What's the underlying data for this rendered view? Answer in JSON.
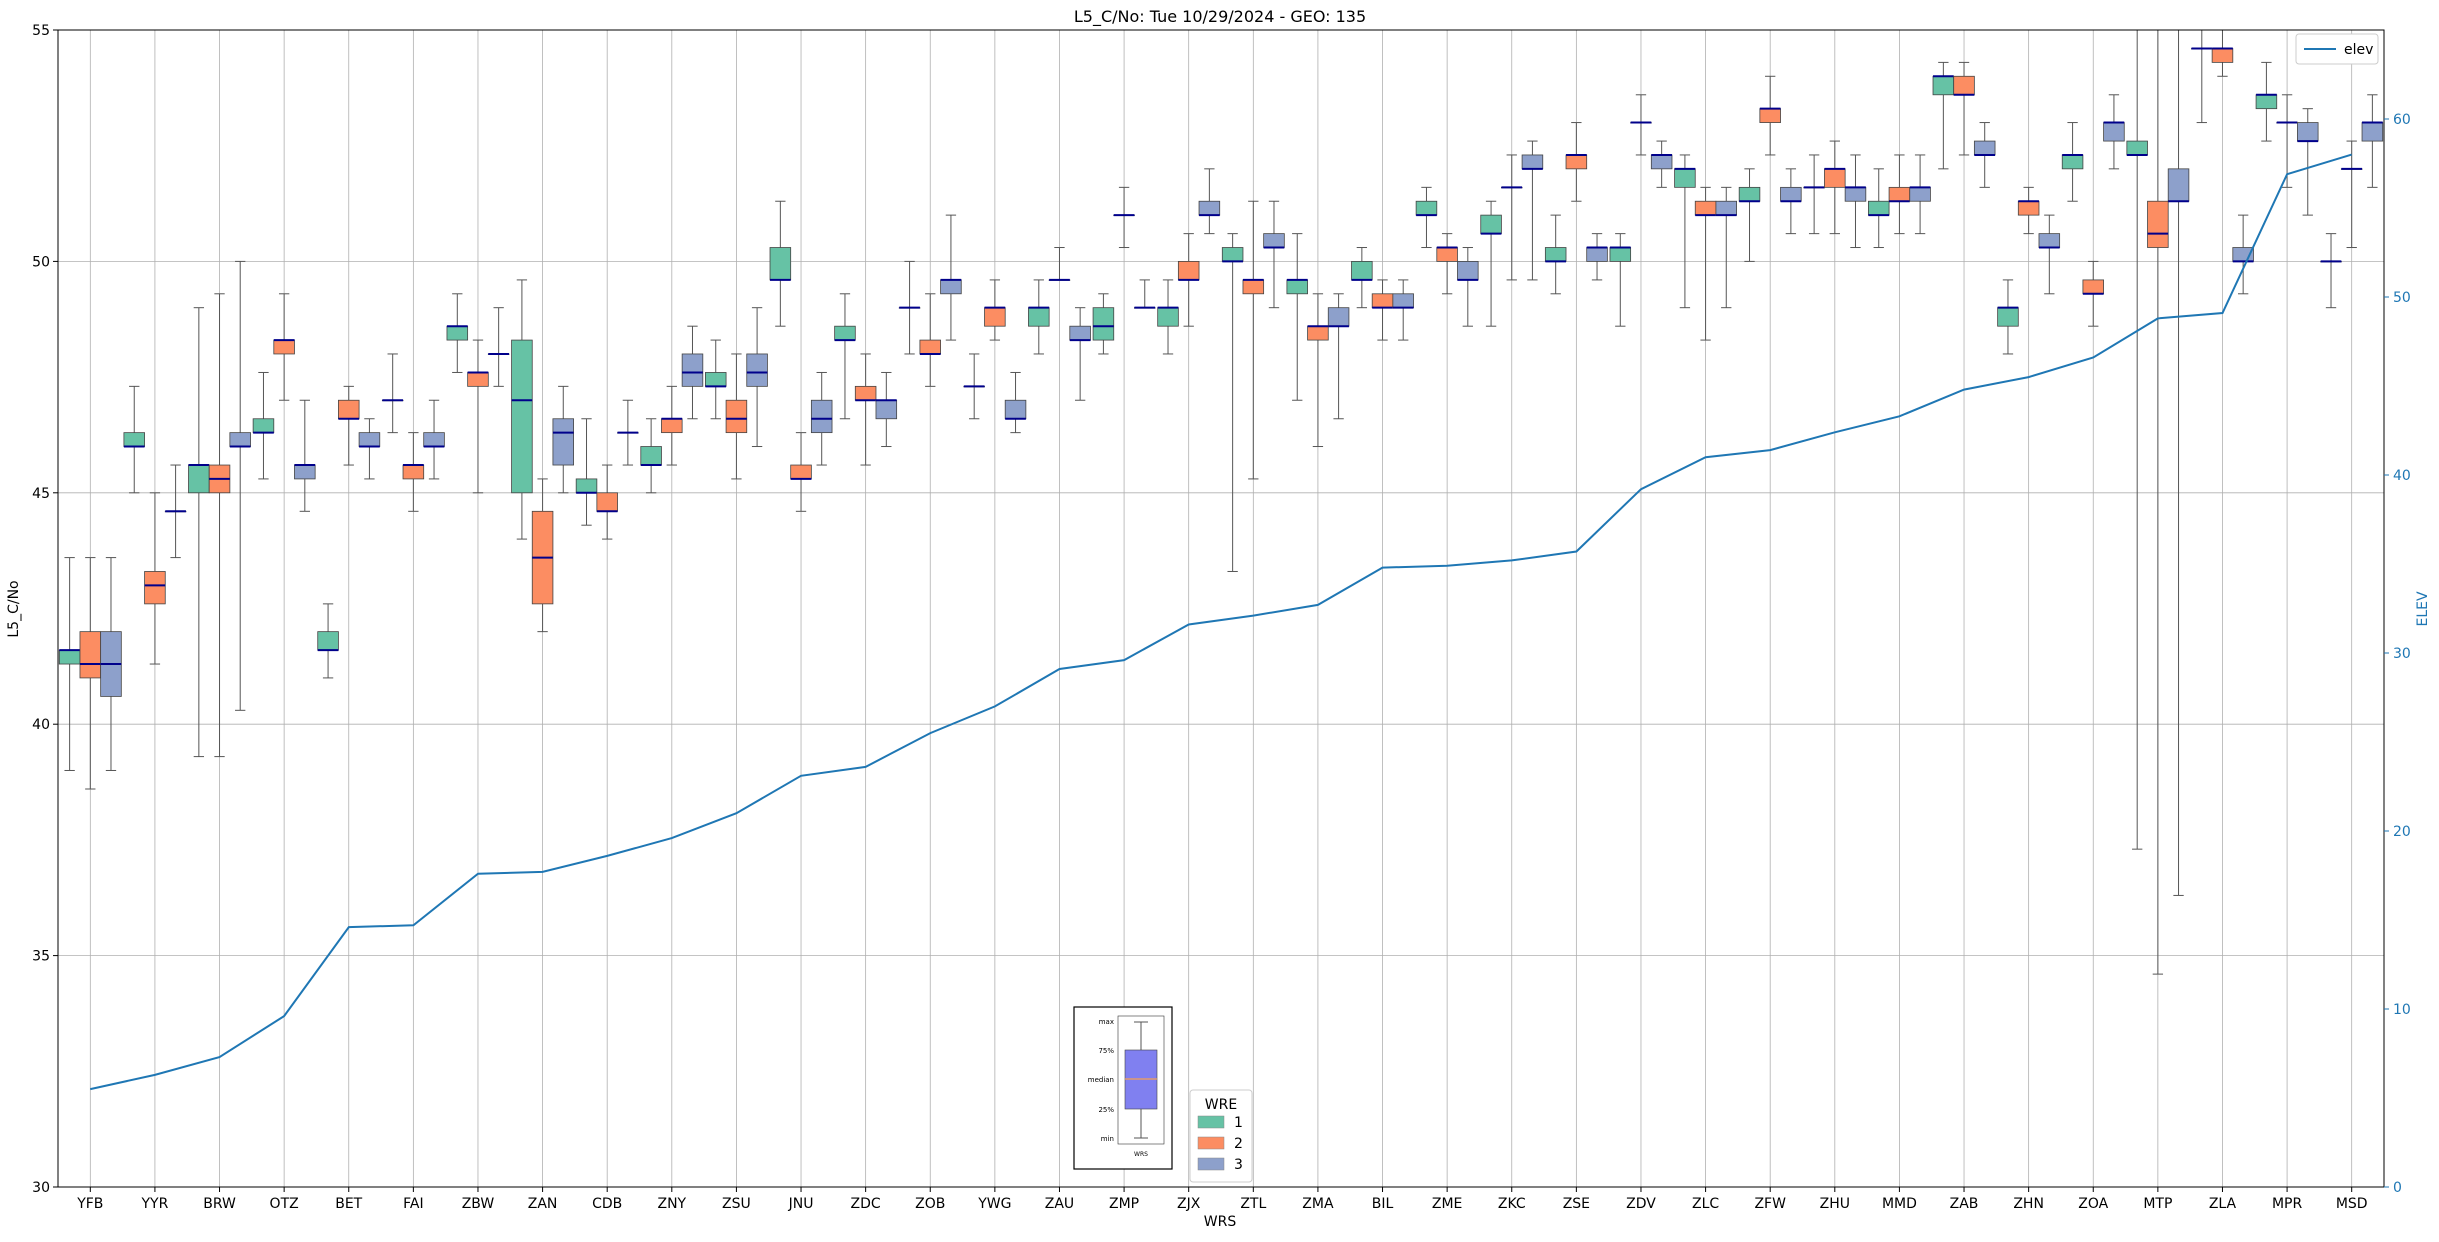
{
  "chart_data": {
    "type": "box",
    "title": "L5_C/No: Tue 10/29/2024 - GEO: 135",
    "xlabel": "WRS",
    "ylabel": "L5_C/No",
    "y2label": "ELEV",
    "ylim": [
      30,
      55
    ],
    "y2lim": [
      0,
      65
    ],
    "yticks": [
      30,
      35,
      40,
      45,
      50,
      55
    ],
    "y2ticks": [
      0,
      10,
      20,
      30,
      40,
      50,
      60
    ],
    "grid": true,
    "categories": [
      "YFB",
      "YYR",
      "BRW",
      "OTZ",
      "BET",
      "FAI",
      "ZBW",
      "ZAN",
      "CDB",
      "ZNY",
      "ZSU",
      "JNU",
      "ZDC",
      "ZOB",
      "YWG",
      "ZAU",
      "ZMP",
      "ZJX",
      "ZTL",
      "ZMA",
      "BIL",
      "ZME",
      "ZKC",
      "ZSE",
      "ZDV",
      "ZLC",
      "ZFW",
      "ZHU",
      "MMD",
      "ZAB",
      "ZHN",
      "ZOA",
      "MTP",
      "ZLA",
      "MPR",
      "MSD"
    ],
    "legend": {
      "title": "WRE",
      "placement": "bottom-center",
      "entries": [
        {
          "label": "1",
          "color": "#66c2a5"
        },
        {
          "label": "2",
          "color": "#fc8d62"
        },
        {
          "label": "3",
          "color": "#8da0cb"
        }
      ]
    },
    "elev_legend": {
      "label": "elev",
      "placement": "top-right",
      "color": "#1f77b4"
    },
    "inset_legend": {
      "labels": [
        "max",
        "75%",
        "median",
        "25%",
        "min"
      ],
      "xlabel": "WRS"
    },
    "elev": [
      5.5,
      6.3,
      7.3,
      9.6,
      14.6,
      14.7,
      17.6,
      17.7,
      18.6,
      19.6,
      21.0,
      23.1,
      23.6,
      25.5,
      27.0,
      29.1,
      29.6,
      31.6,
      32.1,
      32.7,
      34.8,
      34.9,
      35.2,
      35.7,
      39.2,
      41.0,
      41.4,
      42.4,
      43.3,
      44.8,
      45.5,
      46.6,
      48.8,
      49.1,
      56.9,
      58.0
    ],
    "series": [
      {
        "name": "1",
        "boxes": [
          [
            0,
            39.0,
            41.3,
            41.6,
            41.6,
            43.6
          ],
          [
            1,
            45.0,
            46.0,
            46.0,
            46.3,
            47.3
          ],
          [
            2,
            39.3,
            45.0,
            45.6,
            45.6,
            49.0
          ],
          [
            3,
            45.3,
            46.3,
            46.3,
            46.6,
            47.6
          ],
          [
            4,
            41.0,
            41.6,
            41.6,
            42.0,
            42.6
          ],
          [
            5,
            46.3,
            47.0,
            47.0,
            47.0,
            48.0
          ],
          [
            6,
            47.6,
            48.3,
            48.6,
            48.6,
            49.3
          ],
          [
            7,
            44.0,
            45.0,
            47.0,
            48.3,
            49.6
          ],
          [
            8,
            44.3,
            45.0,
            45.0,
            45.3,
            46.6
          ],
          [
            9,
            45.0,
            45.6,
            45.6,
            46.0,
            46.6
          ],
          [
            10,
            46.6,
            47.3,
            47.3,
            47.6,
            48.3
          ],
          [
            11,
            48.6,
            49.6,
            49.6,
            50.3,
            51.3
          ],
          [
            12,
            46.6,
            48.3,
            48.3,
            48.6,
            49.3
          ],
          [
            13,
            48.0,
            49.0,
            49.0,
            49.0,
            50.0
          ],
          [
            14,
            46.6,
            47.3,
            47.3,
            47.3,
            48.0
          ],
          [
            15,
            48.0,
            48.6,
            49.0,
            49.0,
            49.6
          ],
          [
            16,
            48.0,
            48.3,
            48.6,
            49.0,
            49.3
          ],
          [
            17,
            48.0,
            48.6,
            49.0,
            49.0,
            49.6
          ],
          [
            18,
            43.3,
            50.0,
            50.0,
            50.3,
            50.6
          ],
          [
            19,
            47.0,
            49.3,
            49.6,
            49.6,
            50.6
          ],
          [
            20,
            49.0,
            49.6,
            49.6,
            50.0,
            50.3
          ],
          [
            21,
            50.3,
            51.0,
            51.0,
            51.3,
            51.6
          ],
          [
            22,
            48.6,
            50.6,
            50.6,
            51.0,
            51.3
          ],
          [
            23,
            49.3,
            50.0,
            50.0,
            50.3,
            51.0
          ],
          [
            24,
            48.6,
            50.0,
            50.3,
            50.3,
            50.6
          ],
          [
            25,
            49.0,
            51.6,
            52.0,
            52.0,
            52.3
          ],
          [
            26,
            50.0,
            51.3,
            51.3,
            51.6,
            52.0
          ],
          [
            27,
            50.6,
            51.6,
            51.6,
            51.6,
            52.3
          ],
          [
            28,
            50.3,
            51.0,
            51.0,
            51.3,
            52.0
          ],
          [
            29,
            52.0,
            53.6,
            54.0,
            54.0,
            54.3
          ],
          [
            30,
            48.0,
            48.6,
            49.0,
            49.0,
            49.6
          ],
          [
            31,
            51.3,
            52.0,
            52.3,
            52.3,
            53.0
          ],
          [
            32,
            37.3,
            52.3,
            52.3,
            52.6,
            55.0
          ],
          [
            33,
            53.0,
            54.6,
            54.6,
            54.6,
            55.0
          ],
          [
            34,
            52.6,
            53.3,
            53.6,
            53.6,
            54.3
          ],
          [
            35,
            49.0,
            50.0,
            50.0,
            50.0,
            50.6
          ]
        ]
      },
      {
        "name": "2",
        "boxes": [
          [
            0,
            38.6,
            41.0,
            41.3,
            42.0,
            43.6
          ],
          [
            1,
            41.3,
            42.6,
            43.0,
            43.3,
            45.0
          ],
          [
            2,
            39.3,
            45.0,
            45.3,
            45.6,
            49.3
          ],
          [
            3,
            47.0,
            48.0,
            48.3,
            48.3,
            49.3
          ],
          [
            4,
            45.6,
            46.6,
            46.6,
            47.0,
            47.3
          ],
          [
            5,
            44.6,
            45.3,
            45.6,
            45.6,
            46.3
          ],
          [
            6,
            45.0,
            47.3,
            47.6,
            47.6,
            48.3
          ],
          [
            7,
            42.0,
            42.6,
            43.6,
            44.6,
            45.3
          ],
          [
            8,
            44.0,
            44.6,
            44.6,
            45.0,
            45.6
          ],
          [
            9,
            45.6,
            46.3,
            46.6,
            46.6,
            47.3
          ],
          [
            10,
            45.3,
            46.3,
            46.6,
            47.0,
            48.0
          ],
          [
            11,
            44.6,
            45.3,
            45.3,
            45.6,
            46.3
          ],
          [
            12,
            45.6,
            47.0,
            47.0,
            47.3,
            48.0
          ],
          [
            13,
            47.3,
            48.0,
            48.0,
            48.3,
            49.3
          ],
          [
            14,
            48.3,
            48.6,
            49.0,
            49.0,
            49.6
          ],
          [
            15,
            49.6,
            49.6,
            49.6,
            49.6,
            50.3
          ],
          [
            16,
            50.3,
            51.0,
            51.0,
            51.0,
            51.6
          ],
          [
            17,
            48.6,
            49.6,
            49.6,
            50.0,
            50.6
          ],
          [
            18,
            45.3,
            49.3,
            49.6,
            49.6,
            51.3
          ],
          [
            19,
            46.0,
            48.3,
            48.6,
            48.6,
            49.3
          ],
          [
            20,
            48.3,
            49.0,
            49.0,
            49.3,
            49.6
          ],
          [
            21,
            49.3,
            50.0,
            50.3,
            50.3,
            50.6
          ],
          [
            22,
            49.6,
            51.6,
            51.6,
            51.6,
            52.3
          ],
          [
            23,
            51.3,
            52.0,
            52.3,
            52.3,
            53.0
          ],
          [
            24,
            52.3,
            53.0,
            53.0,
            53.0,
            53.6
          ],
          [
            25,
            48.3,
            51.0,
            51.0,
            51.3,
            51.6
          ],
          [
            26,
            52.3,
            53.0,
            53.3,
            53.3,
            54.0
          ],
          [
            27,
            50.6,
            51.6,
            52.0,
            52.0,
            52.6
          ],
          [
            28,
            50.6,
            51.3,
            51.3,
            51.6,
            52.3
          ],
          [
            29,
            52.3,
            53.6,
            53.6,
            54.0,
            54.3
          ],
          [
            30,
            50.6,
            51.0,
            51.3,
            51.3,
            51.6
          ],
          [
            31,
            48.6,
            49.3,
            49.3,
            49.6,
            50.0
          ],
          [
            32,
            34.6,
            50.3,
            50.6,
            51.3,
            55.0
          ],
          [
            33,
            54.0,
            54.3,
            54.6,
            54.6,
            55.0
          ],
          [
            34,
            51.6,
            53.0,
            53.0,
            53.0,
            53.6
          ],
          [
            35,
            50.3,
            52.0,
            52.0,
            52.0,
            52.6
          ]
        ]
      },
      {
        "name": "3",
        "boxes": [
          [
            0,
            39.0,
            40.6,
            41.3,
            42.0,
            43.6
          ],
          [
            1,
            43.6,
            44.6,
            44.6,
            44.6,
            45.6
          ],
          [
            2,
            40.3,
            46.0,
            46.0,
            46.3,
            50.0
          ],
          [
            3,
            44.6,
            45.3,
            45.6,
            45.6,
            47.0
          ],
          [
            4,
            45.3,
            46.0,
            46.0,
            46.3,
            46.6
          ],
          [
            5,
            45.3,
            46.0,
            46.0,
            46.3,
            47.0
          ],
          [
            6,
            47.3,
            48.0,
            48.0,
            48.0,
            49.0
          ],
          [
            7,
            45.0,
            45.6,
            46.3,
            46.6,
            47.3
          ],
          [
            8,
            45.6,
            46.3,
            46.3,
            46.3,
            47.0
          ],
          [
            9,
            46.6,
            47.3,
            47.6,
            48.0,
            48.6
          ],
          [
            10,
            46.0,
            47.3,
            47.6,
            48.0,
            49.0
          ],
          [
            11,
            45.6,
            46.3,
            46.6,
            47.0,
            47.6
          ],
          [
            12,
            46.0,
            46.6,
            47.0,
            47.0,
            47.6
          ],
          [
            13,
            48.3,
            49.3,
            49.6,
            49.6,
            51.0
          ],
          [
            14,
            46.3,
            46.6,
            46.6,
            47.0,
            47.6
          ],
          [
            15,
            47.0,
            48.3,
            48.3,
            48.6,
            49.0
          ],
          [
            16,
            49.0,
            49.0,
            49.0,
            49.0,
            49.6
          ],
          [
            17,
            50.6,
            51.0,
            51.0,
            51.3,
            52.0
          ],
          [
            18,
            49.0,
            50.3,
            50.3,
            50.6,
            51.3
          ],
          [
            19,
            46.6,
            48.6,
            48.6,
            49.0,
            49.3
          ],
          [
            20,
            48.3,
            49.0,
            49.0,
            49.3,
            49.6
          ],
          [
            21,
            48.6,
            49.6,
            49.6,
            50.0,
            50.3
          ],
          [
            22,
            49.6,
            52.0,
            52.0,
            52.3,
            52.6
          ],
          [
            23,
            49.6,
            50.0,
            50.3,
            50.3,
            50.6
          ],
          [
            24,
            51.6,
            52.0,
            52.3,
            52.3,
            52.6
          ],
          [
            25,
            49.0,
            51.0,
            51.0,
            51.3,
            51.6
          ],
          [
            26,
            50.6,
            51.3,
            51.3,
            51.6,
            52.0
          ],
          [
            27,
            50.3,
            51.3,
            51.6,
            51.6,
            52.3
          ],
          [
            28,
            50.6,
            51.3,
            51.6,
            51.6,
            52.3
          ],
          [
            29,
            51.6,
            52.3,
            52.3,
            52.6,
            53.0
          ],
          [
            30,
            49.3,
            50.3,
            50.3,
            50.6,
            51.0
          ],
          [
            31,
            52.0,
            52.6,
            53.0,
            53.0,
            53.6
          ],
          [
            32,
            36.3,
            51.3,
            51.3,
            52.0,
            55.0
          ],
          [
            33,
            49.3,
            50.0,
            50.0,
            50.3,
            51.0
          ],
          [
            34,
            51.0,
            52.6,
            52.6,
            53.0,
            53.3
          ],
          [
            35,
            51.6,
            52.6,
            53.0,
            53.0,
            53.6
          ]
        ]
      }
    ]
  }
}
